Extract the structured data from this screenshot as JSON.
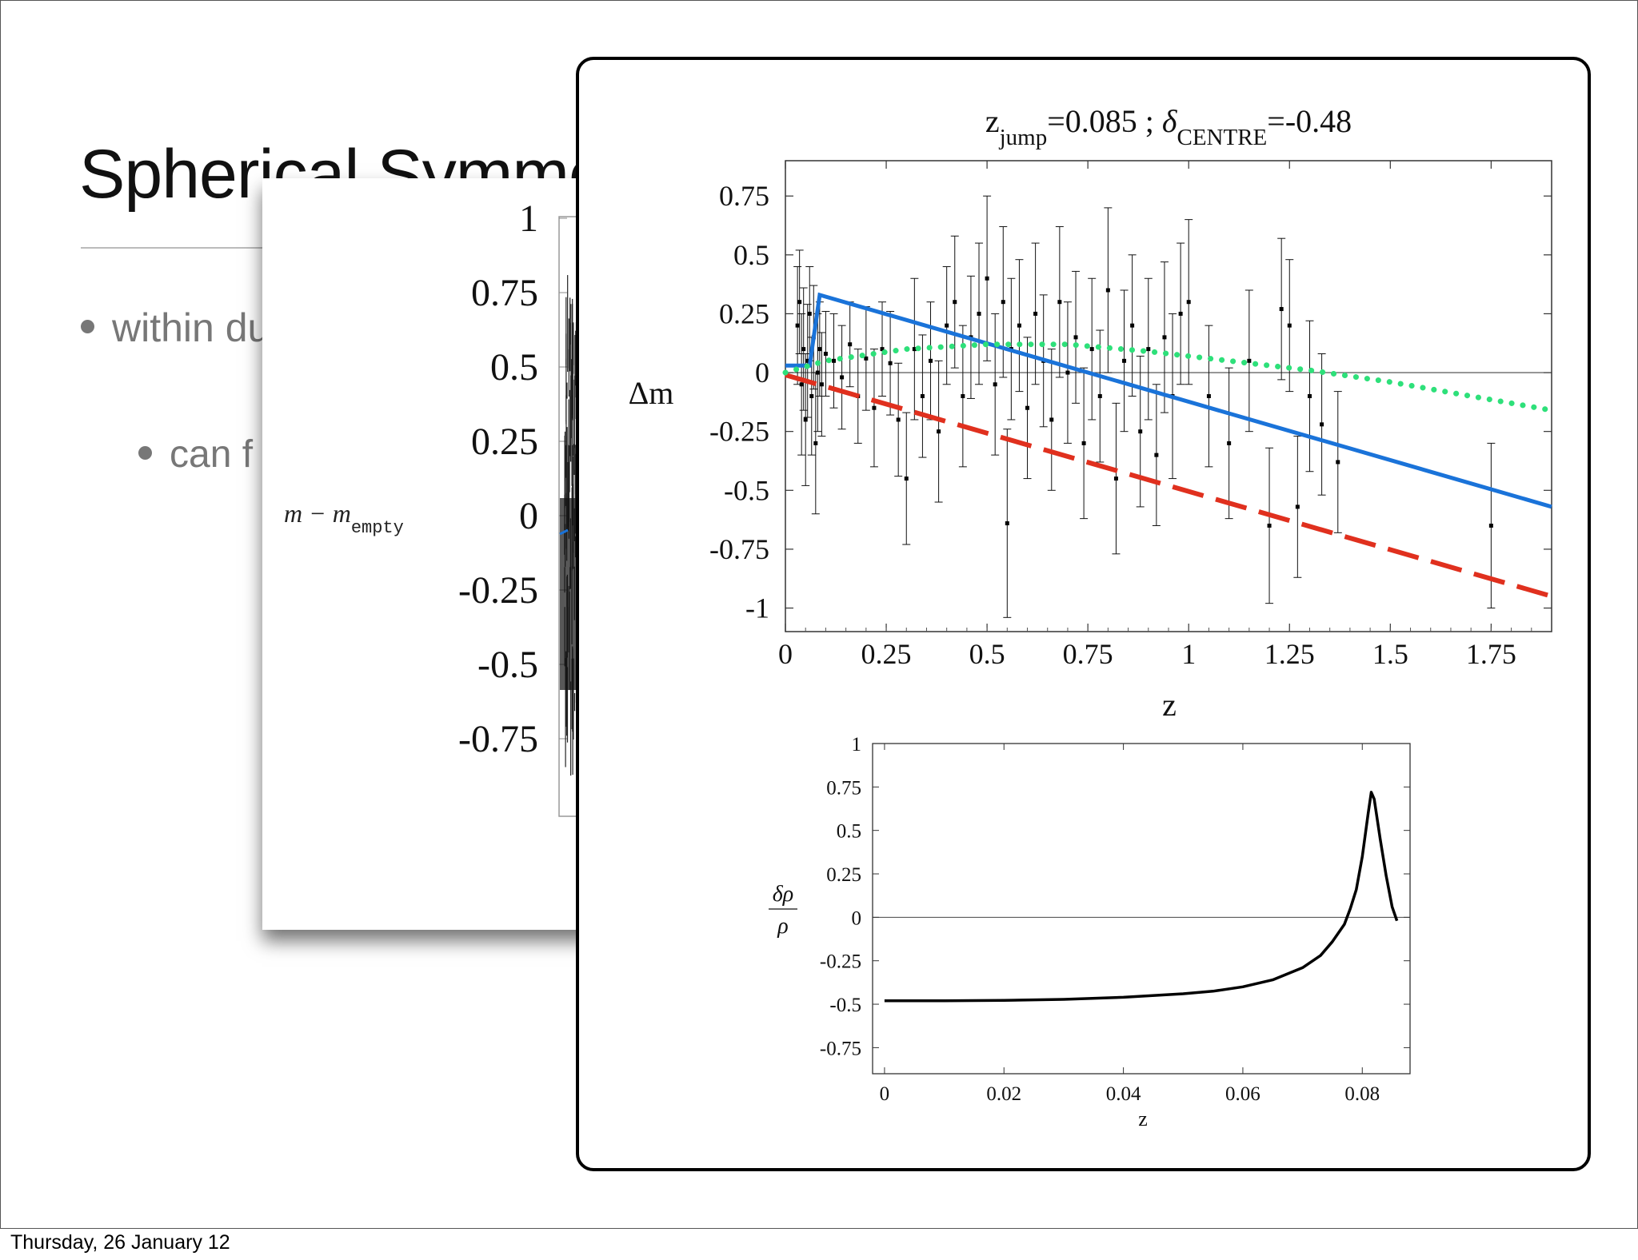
{
  "slide": {
    "title": "Spherical Symme",
    "bullets": [
      "within du",
      "can f"
    ],
    "footer": "Thursday, 26 January 12"
  },
  "colors": {
    "blue_line": "#1a73d9",
    "red_dashed": "#e0301e",
    "green_dotted": "#2ee07a",
    "data_points": "#000000"
  },
  "chart_data": [
    {
      "id": "main-hubble-residuals",
      "type": "scatter",
      "title_parts": {
        "z_sym": "z",
        "z_sub": "jump",
        "z_val": "=0.085 ; ",
        "d_sym": "δ",
        "d_sub": "CENTRE",
        "d_val": "=-0.48"
      },
      "xlabel": "z",
      "ylabel": "Δm",
      "xlim": [
        0,
        1.9
      ],
      "ylim": [
        -1.1,
        0.9
      ],
      "xticks": [
        "0",
        "0.25",
        "0.5",
        "0.75",
        "1",
        "1.25",
        "1.5",
        "1.75"
      ],
      "yticks": [
        "0.75",
        "0.5",
        "0.25",
        "0",
        "-0.25",
        "-0.5",
        "-0.75",
        "-1"
      ],
      "lines": [
        {
          "style": "solid",
          "color": "blue",
          "points": [
            [
              0,
              0.03
            ],
            [
              0.06,
              0.03
            ],
            [
              0.085,
              0.33
            ],
            [
              1.9,
              -0.57
            ]
          ]
        },
        {
          "style": "dashed",
          "color": "red",
          "points": [
            [
              0,
              -0.01
            ],
            [
              1.9,
              -0.95
            ]
          ]
        },
        {
          "style": "dotted",
          "color": "green",
          "points": [
            [
              0,
              0.0
            ],
            [
              0.1,
              0.05
            ],
            [
              0.3,
              0.1
            ],
            [
              0.5,
              0.12
            ],
            [
              0.7,
              0.12
            ],
            [
              0.9,
              0.09
            ],
            [
              1.1,
              0.05
            ],
            [
              1.3,
              0.01
            ],
            [
              1.5,
              -0.04
            ],
            [
              1.7,
              -0.1
            ],
            [
              1.9,
              -0.16
            ]
          ]
        }
      ],
      "points": [
        [
          0.03,
          0.2,
          0.25
        ],
        [
          0.035,
          0.3,
          0.22
        ],
        [
          0.04,
          -0.05,
          0.3
        ],
        [
          0.045,
          0.1,
          0.26
        ],
        [
          0.05,
          -0.2,
          0.28
        ],
        [
          0.055,
          0.05,
          0.24
        ],
        [
          0.06,
          0.25,
          0.2
        ],
        [
          0.065,
          -0.1,
          0.25
        ],
        [
          0.07,
          0.15,
          0.22
        ],
        [
          0.075,
          -0.3,
          0.3
        ],
        [
          0.08,
          0.0,
          0.25
        ],
        [
          0.085,
          0.1,
          0.2
        ],
        [
          0.09,
          -0.05,
          0.22
        ],
        [
          0.1,
          0.08,
          0.18
        ],
        [
          0.12,
          0.05,
          0.2
        ],
        [
          0.14,
          -0.02,
          0.22
        ],
        [
          0.16,
          0.12,
          0.18
        ],
        [
          0.18,
          -0.1,
          0.2
        ],
        [
          0.2,
          0.06,
          0.22
        ],
        [
          0.22,
          -0.15,
          0.25
        ],
        [
          0.24,
          0.1,
          0.2
        ],
        [
          0.26,
          0.04,
          0.22
        ],
        [
          0.28,
          -0.2,
          0.24
        ],
        [
          0.3,
          -0.45,
          0.28
        ],
        [
          0.32,
          0.1,
          0.3
        ],
        [
          0.34,
          -0.1,
          0.26
        ],
        [
          0.36,
          0.05,
          0.25
        ],
        [
          0.38,
          -0.25,
          0.3
        ],
        [
          0.4,
          0.2,
          0.25
        ],
        [
          0.42,
          0.3,
          0.28
        ],
        [
          0.44,
          -0.1,
          0.3
        ],
        [
          0.46,
          0.15,
          0.26
        ],
        [
          0.48,
          0.25,
          0.3
        ],
        [
          0.5,
          0.4,
          0.35
        ],
        [
          0.52,
          -0.05,
          0.3
        ],
        [
          0.54,
          0.3,
          0.32
        ],
        [
          0.55,
          -0.64,
          0.4
        ],
        [
          0.56,
          0.1,
          0.3
        ],
        [
          0.58,
          0.2,
          0.28
        ],
        [
          0.6,
          -0.15,
          0.3
        ],
        [
          0.62,
          0.25,
          0.3
        ],
        [
          0.64,
          0.05,
          0.28
        ],
        [
          0.66,
          -0.2,
          0.3
        ],
        [
          0.68,
          0.3,
          0.32
        ],
        [
          0.7,
          0.0,
          0.3
        ],
        [
          0.72,
          0.15,
          0.28
        ],
        [
          0.74,
          -0.3,
          0.32
        ],
        [
          0.76,
          0.1,
          0.3
        ],
        [
          0.78,
          -0.1,
          0.28
        ],
        [
          0.8,
          0.35,
          0.35
        ],
        [
          0.82,
          -0.45,
          0.32
        ],
        [
          0.84,
          0.05,
          0.3
        ],
        [
          0.86,
          0.2,
          0.3
        ],
        [
          0.88,
          -0.25,
          0.32
        ],
        [
          0.9,
          0.1,
          0.3
        ],
        [
          0.92,
          -0.35,
          0.3
        ],
        [
          0.94,
          0.15,
          0.32
        ],
        [
          0.96,
          -0.1,
          0.35
        ],
        [
          0.98,
          0.25,
          0.3
        ],
        [
          1.0,
          0.3,
          0.35
        ],
        [
          1.05,
          -0.1,
          0.3
        ],
        [
          1.1,
          -0.3,
          0.32
        ],
        [
          1.15,
          0.05,
          0.3
        ],
        [
          1.2,
          -0.65,
          0.33
        ],
        [
          1.23,
          0.27,
          0.3
        ],
        [
          1.25,
          0.2,
          0.28
        ],
        [
          1.27,
          -0.57,
          0.3
        ],
        [
          1.3,
          -0.1,
          0.32
        ],
        [
          1.33,
          -0.22,
          0.3
        ],
        [
          1.37,
          -0.38,
          0.3
        ],
        [
          1.75,
          -0.65,
          0.35
        ]
      ]
    },
    {
      "id": "density-profile",
      "type": "line",
      "xlabel": "z",
      "ylabel_num": "δρ",
      "ylabel_den": "ρ",
      "xlim": [
        -0.002,
        0.088
      ],
      "ylim": [
        -0.9,
        1.0
      ],
      "xticks": [
        "0",
        "0.02",
        "0.04",
        "0.06",
        "0.08"
      ],
      "yticks": [
        "1",
        "0.75",
        "0.5",
        "0.25",
        "0",
        "-0.25",
        "-0.5",
        "-0.75"
      ],
      "points": [
        [
          0.0,
          -0.48
        ],
        [
          0.01,
          -0.48
        ],
        [
          0.02,
          -0.478
        ],
        [
          0.03,
          -0.472
        ],
        [
          0.04,
          -0.46
        ],
        [
          0.05,
          -0.44
        ],
        [
          0.055,
          -0.425
        ],
        [
          0.06,
          -0.4
        ],
        [
          0.065,
          -0.36
        ],
        [
          0.07,
          -0.29
        ],
        [
          0.073,
          -0.22
        ],
        [
          0.075,
          -0.14
        ],
        [
          0.077,
          -0.04
        ],
        [
          0.078,
          0.05
        ],
        [
          0.079,
          0.16
        ],
        [
          0.08,
          0.35
        ],
        [
          0.081,
          0.6
        ],
        [
          0.0815,
          0.72
        ],
        [
          0.082,
          0.68
        ],
        [
          0.083,
          0.45
        ],
        [
          0.084,
          0.24
        ],
        [
          0.085,
          0.06
        ],
        [
          0.0858,
          -0.02
        ]
      ]
    },
    {
      "id": "background-hubble-plot",
      "type": "scatter",
      "ylabel": "m − m",
      "ylabel_sub": "empty",
      "yticks": [
        "1",
        "0.75",
        "0.5",
        "0.25",
        "0",
        "-0.25",
        "-0.5",
        "-0.75"
      ]
    }
  ]
}
